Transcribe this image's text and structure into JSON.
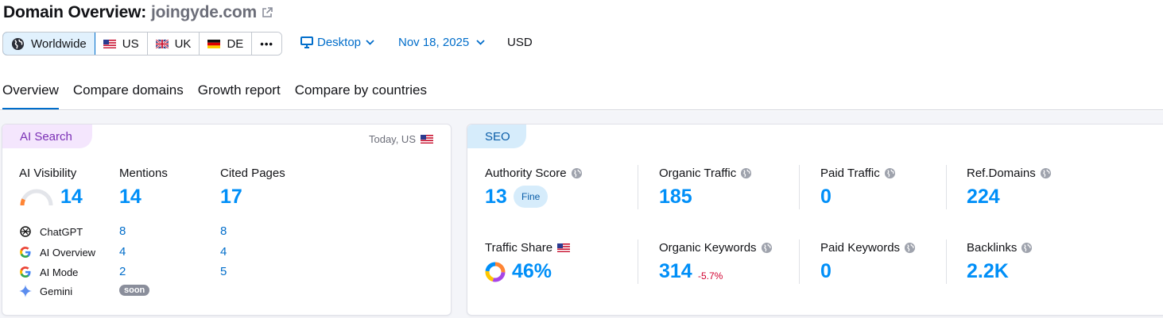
{
  "header": {
    "title": "Domain Overview:",
    "domain": "joingyde.com",
    "external_icon": "external-link-icon"
  },
  "regions": [
    {
      "label": "Worldwide",
      "icon": "globe-icon",
      "active": true
    },
    {
      "label": "US",
      "icon": "us-flag-icon"
    },
    {
      "label": "UK",
      "icon": "uk-flag-icon"
    },
    {
      "label": "DE",
      "icon": "de-flag-icon"
    },
    {
      "label": "•••",
      "icon": "more-icon"
    }
  ],
  "filters": {
    "device": "Desktop",
    "date": "Nov 18, 2025",
    "currency": "USD"
  },
  "tabs": [
    "Overview",
    "Compare domains",
    "Growth report",
    "Compare by countries"
  ],
  "ai_search": {
    "badge": "AI Search",
    "scope": "Today, US",
    "visibility_label": "AI Visibility",
    "visibility_value": "14",
    "visibility_gauge": 0.14,
    "mentions_label": "Mentions",
    "mentions_value": "14",
    "cited_label": "Cited Pages",
    "cited_value": "17",
    "engines": [
      {
        "name": "ChatGPT",
        "mentions": "8",
        "cited": "8",
        "icon": "chatgpt-icon"
      },
      {
        "name": "AI Overview",
        "mentions": "4",
        "cited": "4",
        "icon": "google-icon"
      },
      {
        "name": "AI Mode",
        "mentions": "2",
        "cited": "5",
        "icon": "google-icon"
      },
      {
        "name": "Gemini",
        "badge": "soon",
        "icon": "gemini-icon"
      }
    ]
  },
  "seo": {
    "badge": "SEO",
    "authority_label": "Authority Score",
    "authority_value": "13",
    "authority_badge": "Fine",
    "organic_traffic_label": "Organic Traffic",
    "organic_traffic_value": "185",
    "paid_traffic_label": "Paid Traffic",
    "paid_traffic_value": "0",
    "ref_domains_label": "Ref.Domains",
    "ref_domains_value": "224",
    "traffic_share_label": "Traffic Share",
    "traffic_share_value": "46%",
    "organic_keywords_label": "Organic Keywords",
    "organic_keywords_value": "314",
    "organic_keywords_delta": "-5.7%",
    "paid_keywords_label": "Paid Keywords",
    "paid_keywords_value": "0",
    "backlinks_label": "Backlinks",
    "backlinks_value": "2.2K"
  },
  "colors": {
    "accent": "#006dca",
    "value": "#008ff8",
    "negative": "#d1002f",
    "ai_badge": "#f4e6fd",
    "seo_badge": "#d6ecfb"
  }
}
